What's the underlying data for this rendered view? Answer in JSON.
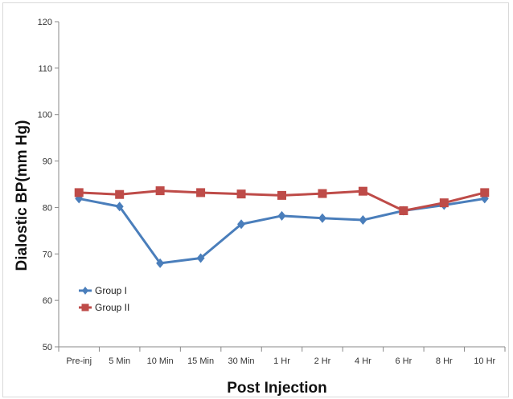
{
  "chart_data": {
    "type": "line",
    "title": "",
    "xlabel": "Post Injection",
    "ylabel": "Dialostic BP(mm Hg)",
    "categories": [
      "Pre-inj",
      "5 Min",
      "10 Min",
      "15 Min",
      "30 Min",
      "1 Hr",
      "2 Hr",
      "4 Hr",
      "6 Hr",
      "8 Hr",
      "10 Hr"
    ],
    "ylim": [
      50,
      120
    ],
    "yticks": [
      50,
      60,
      70,
      80,
      90,
      100,
      110,
      120
    ],
    "grid": false,
    "legend_position": "bottom-left",
    "series": [
      {
        "name": "Group I",
        "color": "#4a7ebb",
        "marker": "diamond",
        "values": [
          81.9,
          80.2,
          68.0,
          69.1,
          76.4,
          78.2,
          77.7,
          77.3,
          79.3,
          80.5,
          81.9
        ]
      },
      {
        "name": "Group II",
        "color": "#be4b48",
        "marker": "square",
        "values": [
          83.2,
          82.8,
          83.6,
          83.2,
          82.9,
          82.6,
          83.0,
          83.5,
          79.3,
          81.0,
          83.2
        ]
      }
    ]
  }
}
